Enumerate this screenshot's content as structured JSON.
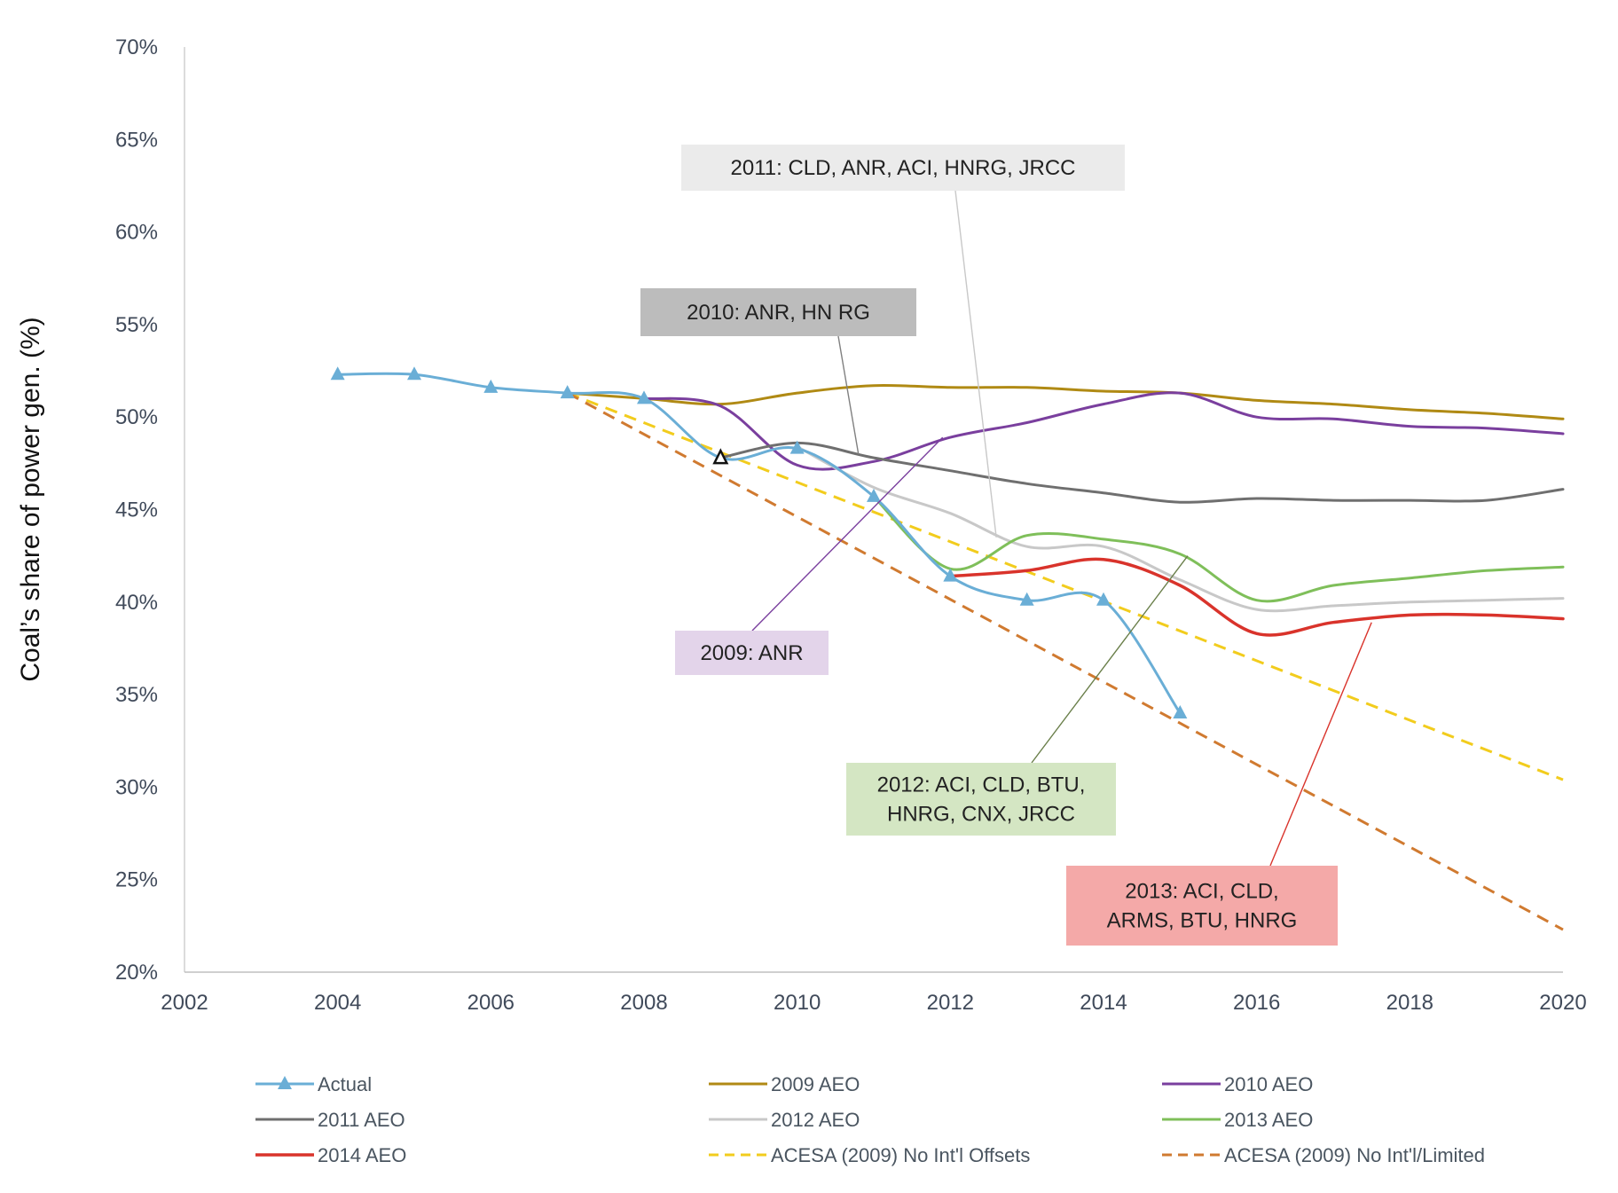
{
  "chart_data": {
    "type": "line",
    "title": "",
    "xlabel": "",
    "ylabel": "Coal’s share of power gen. (%)",
    "xlim": [
      2002,
      2020
    ],
    "ylim": [
      20,
      70
    ],
    "x_ticks": [
      2002,
      2004,
      2006,
      2008,
      2010,
      2012,
      2014,
      2016,
      2018,
      2020
    ],
    "x_tick_labels": [
      "2002",
      "2004",
      "2006",
      "2008",
      "2010",
      "2012",
      "2014",
      "2016",
      "2018",
      "2020"
    ],
    "y_ticks": [
      20,
      25,
      30,
      35,
      40,
      45,
      50,
      55,
      60,
      65,
      70
    ],
    "y_tick_labels": [
      "20%",
      "25%",
      "30%",
      "35%",
      "40%",
      "45%",
      "50%",
      "55%",
      "60%",
      "65%",
      "70%"
    ],
    "grid": false,
    "legend_position": "bottom",
    "series": [
      {
        "name": "Actual",
        "color": "#6aaed6",
        "dash": "solid",
        "marker": "triangle",
        "width": 3,
        "points": [
          [
            2004,
            52.3
          ],
          [
            2005,
            52.3
          ],
          [
            2006,
            51.6
          ],
          [
            2007,
            51.3
          ],
          [
            2008,
            51.0
          ],
          [
            2009,
            47.8
          ],
          [
            2010,
            48.3
          ],
          [
            2011,
            45.7
          ],
          [
            2012,
            41.4
          ],
          [
            2013,
            40.1
          ],
          [
            2014,
            40.1
          ],
          [
            2015,
            34.0
          ]
        ]
      },
      {
        "name": "2009 AEO",
        "color": "#b08a14",
        "dash": "solid",
        "marker": "none",
        "width": 3,
        "points": [
          [
            2007,
            51.3
          ],
          [
            2008,
            51.0
          ],
          [
            2009,
            50.7
          ],
          [
            2010,
            51.3
          ],
          [
            2011,
            51.7
          ],
          [
            2012,
            51.6
          ],
          [
            2013,
            51.6
          ],
          [
            2014,
            51.4
          ],
          [
            2015,
            51.3
          ],
          [
            2016,
            50.9
          ],
          [
            2017,
            50.7
          ],
          [
            2018,
            50.4
          ],
          [
            2019,
            50.2
          ],
          [
            2020,
            49.9
          ]
        ]
      },
      {
        "name": "2010 AEO",
        "color": "#7a3f9e",
        "dash": "solid",
        "marker": "none",
        "width": 3,
        "points": [
          [
            2008,
            51.0
          ],
          [
            2009,
            50.6
          ],
          [
            2010,
            47.4
          ],
          [
            2011,
            47.6
          ],
          [
            2012,
            48.9
          ],
          [
            2013,
            49.7
          ],
          [
            2014,
            50.7
          ],
          [
            2015,
            51.3
          ],
          [
            2016,
            50.0
          ],
          [
            2017,
            49.9
          ],
          [
            2018,
            49.5
          ],
          [
            2019,
            49.4
          ],
          [
            2020,
            49.1
          ]
        ]
      },
      {
        "name": "2011 AEO",
        "color": "#6f6f6f",
        "dash": "solid",
        "marker": "none",
        "width": 3,
        "points": [
          [
            2009,
            47.8
          ],
          [
            2010,
            48.6
          ],
          [
            2011,
            47.8
          ],
          [
            2012,
            47.1
          ],
          [
            2013,
            46.4
          ],
          [
            2014,
            45.9
          ],
          [
            2015,
            45.4
          ],
          [
            2016,
            45.6
          ],
          [
            2017,
            45.5
          ],
          [
            2018,
            45.5
          ],
          [
            2019,
            45.5
          ],
          [
            2020,
            46.1
          ]
        ]
      },
      {
        "name": "2012 AEO",
        "color": "#c8c8c8",
        "dash": "solid",
        "marker": "none",
        "width": 3,
        "points": [
          [
            2010,
            48.4
          ],
          [
            2011,
            46.2
          ],
          [
            2012,
            44.8
          ],
          [
            2013,
            43.0
          ],
          [
            2014,
            43.0
          ],
          [
            2015,
            41.2
          ],
          [
            2016,
            39.6
          ],
          [
            2017,
            39.8
          ],
          [
            2018,
            40.0
          ],
          [
            2019,
            40.1
          ],
          [
            2020,
            40.2
          ]
        ]
      },
      {
        "name": "2013 AEO",
        "color": "#7fbf5a",
        "dash": "solid",
        "marker": "none",
        "width": 3,
        "points": [
          [
            2011,
            45.7
          ],
          [
            2012,
            41.8
          ],
          [
            2013,
            43.6
          ],
          [
            2014,
            43.4
          ],
          [
            2015,
            42.6
          ],
          [
            2016,
            40.1
          ],
          [
            2017,
            40.9
          ],
          [
            2018,
            41.3
          ],
          [
            2019,
            41.7
          ],
          [
            2020,
            41.9
          ]
        ]
      },
      {
        "name": "2014 AEO",
        "color": "#d9332b",
        "dash": "solid",
        "marker": "none",
        "width": 3.5,
        "points": [
          [
            2012,
            41.4
          ],
          [
            2013,
            41.7
          ],
          [
            2014,
            42.3
          ],
          [
            2015,
            40.9
          ],
          [
            2016,
            38.3
          ],
          [
            2017,
            38.9
          ],
          [
            2018,
            39.3
          ],
          [
            2019,
            39.3
          ],
          [
            2020,
            39.1
          ]
        ]
      },
      {
        "name": "ACESA (2009) No Int'l Offsets",
        "color": "#f2cc1d",
        "dash": "dashed",
        "marker": "none",
        "width": 3,
        "points": [
          [
            2007,
            51.3
          ],
          [
            2020,
            30.4
          ]
        ]
      },
      {
        "name": "ACESA (2009) No Int'l/Limited",
        "color": "#d07a30",
        "dash": "dashed",
        "marker": "none",
        "width": 3,
        "points": [
          [
            2007,
            51.3
          ],
          [
            2020,
            22.3
          ]
        ]
      }
    ],
    "annotations": [
      {
        "id": "2011",
        "lines": [
          "2011: CLD, ANR, ACI, HNRG, JRCC"
        ],
        "fill": "#ebebeb",
        "leader_color": "#c8c8c8",
        "target": [
          2012.6,
          43.5
        ]
      },
      {
        "id": "2010",
        "lines": [
          "2010: ANR, HN RG"
        ],
        "fill": "#bcbcbc",
        "leader_color": "#808080",
        "target": [
          2010.8,
          48.0
        ]
      },
      {
        "id": "2009",
        "lines": [
          "2009: ANR"
        ],
        "fill": "#e3d4ea",
        "leader_color": "#7a3f9e",
        "target": [
          2011.9,
          48.9
        ]
      },
      {
        "id": "2012",
        "lines": [
          "2012: ACI, CLD, BTU,",
          "HNRG, CNX, JRCC"
        ],
        "fill": "#d4e6c3",
        "leader_color": "#6a7f4a",
        "target": [
          2015.1,
          42.5
        ]
      },
      {
        "id": "2013",
        "lines": [
          "2013: ACI, CLD,",
          "ARMS, BTU, HNRG"
        ],
        "fill": "#f4a9a8",
        "leader_color": "#d9332b",
        "target": [
          2017.5,
          38.9
        ]
      }
    ]
  }
}
